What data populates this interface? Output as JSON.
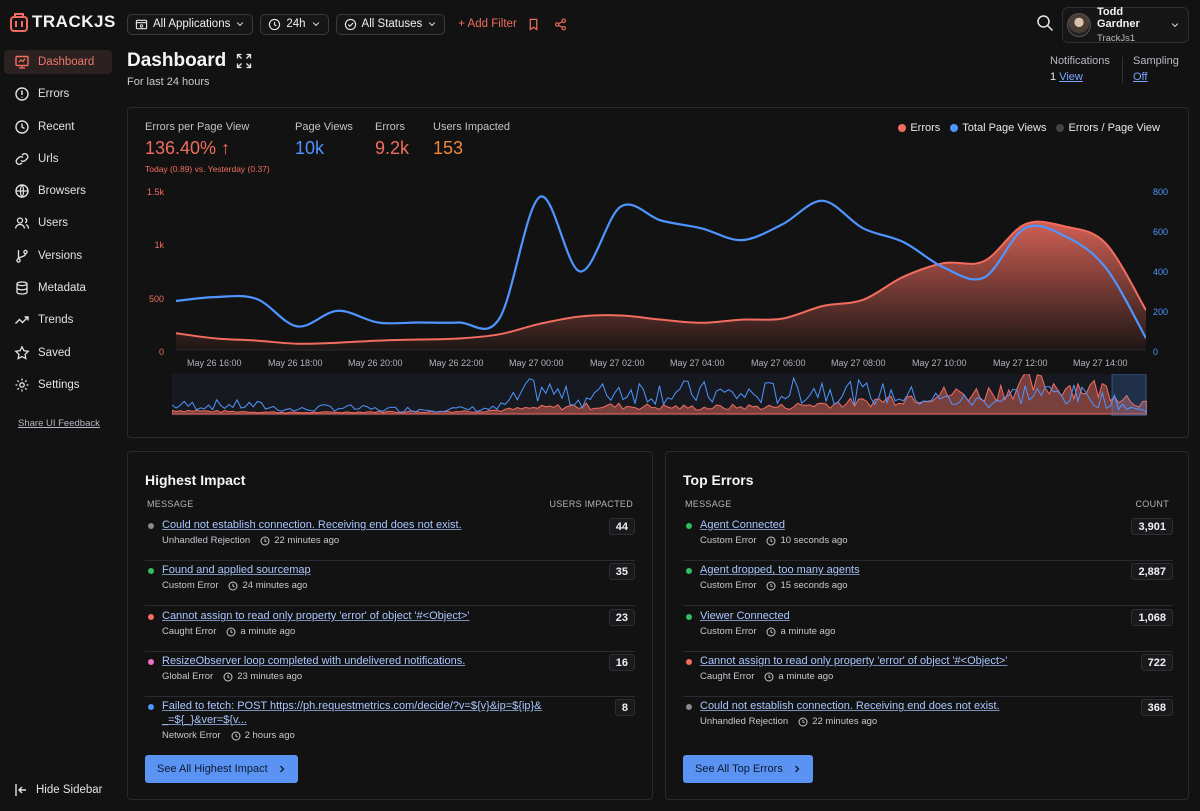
{
  "app": {
    "name": "TRACKJS"
  },
  "sidebar": {
    "items": [
      {
        "label": "Dashboard",
        "icon": "dashboard-icon"
      },
      {
        "label": "Errors",
        "icon": "alert-circle-icon"
      },
      {
        "label": "Recent",
        "icon": "clock-icon"
      },
      {
        "label": "Urls",
        "icon": "link-icon"
      },
      {
        "label": "Browsers",
        "icon": "globe-icon"
      },
      {
        "label": "Users",
        "icon": "users-icon"
      },
      {
        "label": "Versions",
        "icon": "git-branch-icon"
      },
      {
        "label": "Metadata",
        "icon": "database-icon"
      },
      {
        "label": "Trends",
        "icon": "trend-icon"
      },
      {
        "label": "Saved",
        "icon": "star-icon"
      },
      {
        "label": "Settings",
        "icon": "gear-icon"
      }
    ],
    "feedback": "Share UI Feedback",
    "hide": "Hide Sidebar"
  },
  "filters": {
    "applications": "All Applications",
    "range": "24h",
    "statuses": "All Statuses",
    "add_filter": "+ Add Filter"
  },
  "user": {
    "name": "Todd Gardner",
    "org": "TrackJs1"
  },
  "page": {
    "title": "Dashboard",
    "subtitle": "For last 24 hours"
  },
  "notifications": {
    "label": "Notifications",
    "count": "1",
    "link": "View"
  },
  "sampling": {
    "label": "Sampling",
    "value": "Off"
  },
  "kpis": {
    "epv_label": "Errors per Page View",
    "epv_value": "136.40%",
    "epv_sub": "Today (0.89) vs. Yesterday (0.37)",
    "pv_label": "Page Views",
    "pv_value": "10k",
    "err_label": "Errors",
    "err_value": "9.2k",
    "users_label": "Users Impacted",
    "users_value": "153"
  },
  "legend": {
    "errors": "Errors",
    "pageviews": "Total Page Views",
    "epv": "Errors / Page View"
  },
  "colors": {
    "errors": "#f26d5f",
    "pageviews": "#4f95ff",
    "epv": "#444448",
    "accent": "#f26d5f"
  },
  "chart_data": {
    "type": "line",
    "x": [
      "May 26 15:00",
      "May 26 16:00",
      "May 26 17:00",
      "May 26 18:00",
      "May 26 19:00",
      "May 26 20:00",
      "May 26 21:00",
      "May 26 22:00",
      "May 26 23:00",
      "May 27 00:00",
      "May 27 01:00",
      "May 27 02:00",
      "May 27 03:00",
      "May 27 04:00",
      "May 27 05:00",
      "May 27 06:00",
      "May 27 07:00",
      "May 27 08:00",
      "May 27 09:00",
      "May 27 10:00",
      "May 27 11:00",
      "May 27 12:00",
      "May 27 13:00",
      "May 27 14:00",
      "May 27 15:00"
    ],
    "x_tick_labels": [
      "May 26 16:00",
      "May 26 18:00",
      "May 26 20:00",
      "May 26 22:00",
      "May 27 00:00",
      "May 27 02:00",
      "May 27 04:00",
      "May 27 06:00",
      "May 27 08:00",
      "May 27 10:00",
      "May 27 12:00",
      "May 27 14:00"
    ],
    "series": [
      {
        "name": "Errors",
        "axis": "left",
        "values": [
          160,
          110,
          90,
          60,
          70,
          90,
          100,
          110,
          150,
          250,
          320,
          330,
          290,
          260,
          290,
          300,
          420,
          480,
          700,
          830,
          850,
          1200,
          1180,
          1020,
          380
        ]
      },
      {
        "name": "Total Page Views",
        "axis": "right",
        "values": [
          250,
          270,
          260,
          120,
          200,
          140,
          140,
          140,
          160,
          780,
          400,
          730,
          660,
          620,
          560,
          640,
          760,
          620,
          550,
          420,
          370,
          620,
          580,
          420,
          60
        ]
      }
    ],
    "left_ticks": [
      "1.5k",
      "1k",
      "500",
      "0"
    ],
    "right_ticks": [
      "800",
      "600",
      "400",
      "200",
      "0"
    ],
    "ylim_left": [
      0,
      1500
    ],
    "ylim_right": [
      0,
      800
    ],
    "legend_position": "top-right"
  },
  "highest_impact": {
    "title": "Highest Impact",
    "col_message": "MESSAGE",
    "col_value": "USERS IMPACTED",
    "rows": [
      {
        "message": "Could not establish connection. Receiving end does not exist.",
        "type": "Unhandled Rejection",
        "ago": "22 minutes ago",
        "count": "44",
        "dot": "#8a8a8e"
      },
      {
        "message": "Found and applied sourcemap",
        "type": "Custom Error",
        "ago": "24 minutes ago",
        "count": "35",
        "dot": "#2fbf62"
      },
      {
        "message": "Cannot assign to read only property 'error' of object '#<Object>'",
        "type": "Caught Error",
        "ago": "a minute ago",
        "count": "23",
        "dot": "#f26d5f"
      },
      {
        "message": "ResizeObserver loop completed with undelivered notifications.",
        "type": "Global Error",
        "ago": "23 minutes ago",
        "count": "16",
        "dot": "#f06ec8"
      },
      {
        "message": "Failed to fetch: POST https://ph.requestmetrics.com/decide/?v=${v}&ip=${ip}& _=${_}&ver=${v...",
        "type": "Network Error",
        "ago": "2 hours ago",
        "count": "8",
        "dot": "#4f95ff"
      }
    ],
    "button": "See All Highest Impact"
  },
  "top_errors": {
    "title": "Top Errors",
    "col_message": "MESSAGE",
    "col_value": "COUNT",
    "rows": [
      {
        "message": "Agent Connected",
        "type": "Custom Error",
        "ago": "10 seconds ago",
        "count": "3,901",
        "dot": "#2fbf62"
      },
      {
        "message": "Agent dropped, too many agents",
        "type": "Custom Error",
        "ago": "15 seconds ago",
        "count": "2,887",
        "dot": "#2fbf62"
      },
      {
        "message": "Viewer Connected",
        "type": "Custom Error",
        "ago": "a minute ago",
        "count": "1,068",
        "dot": "#2fbf62"
      },
      {
        "message": "Cannot assign to read only property 'error' of object '#<Object>'",
        "type": "Caught Error",
        "ago": "a minute ago",
        "count": "722",
        "dot": "#f26d5f"
      },
      {
        "message": "Could not establish connection. Receiving end does not exist.",
        "type": "Unhandled Rejection",
        "ago": "22 minutes ago",
        "count": "368",
        "dot": "#8a8a8e"
      }
    ],
    "button": "See All Top Errors"
  }
}
